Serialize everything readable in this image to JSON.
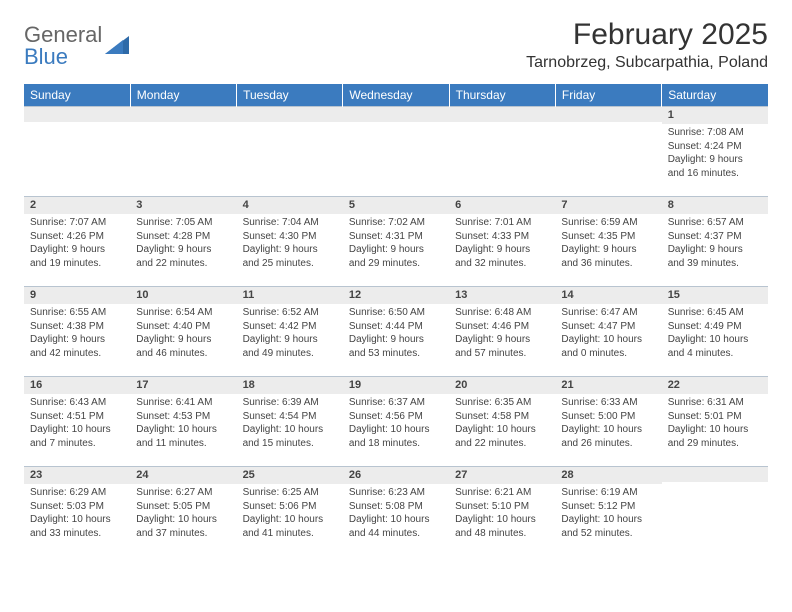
{
  "meta": {
    "background_color": "#ffffff",
    "header_row_color": "#3b7bbf",
    "header_text_color": "#ffffff",
    "daynum_bg_color": "#ececec",
    "border_color": "#b8c4d0",
    "body_text_color": "#444444",
    "logo_gray": "#666666",
    "logo_blue": "#3b7bbf",
    "font_family": "Arial",
    "title_fontsize_pt": 22,
    "location_fontsize_pt": 12,
    "dayheader_fontsize_pt": 9,
    "daynum_fontsize_pt": 8,
    "content_fontsize_pt": 7.5,
    "columns": 7,
    "rows": 5
  },
  "header": {
    "logo_text_top": "General",
    "logo_text_bottom": "Blue",
    "month_title": "February 2025",
    "location": "Tarnobrzeg, Subcarpathia, Poland"
  },
  "day_names": [
    "Sunday",
    "Monday",
    "Tuesday",
    "Wednesday",
    "Thursday",
    "Friday",
    "Saturday"
  ],
  "weeks": [
    [
      {
        "num": "",
        "sunrise": "",
        "sunset": "",
        "daylight": ""
      },
      {
        "num": "",
        "sunrise": "",
        "sunset": "",
        "daylight": ""
      },
      {
        "num": "",
        "sunrise": "",
        "sunset": "",
        "daylight": ""
      },
      {
        "num": "",
        "sunrise": "",
        "sunset": "",
        "daylight": ""
      },
      {
        "num": "",
        "sunrise": "",
        "sunset": "",
        "daylight": ""
      },
      {
        "num": "",
        "sunrise": "",
        "sunset": "",
        "daylight": ""
      },
      {
        "num": "1",
        "sunrise": "Sunrise: 7:08 AM",
        "sunset": "Sunset: 4:24 PM",
        "daylight": "Daylight: 9 hours and 16 minutes."
      }
    ],
    [
      {
        "num": "2",
        "sunrise": "Sunrise: 7:07 AM",
        "sunset": "Sunset: 4:26 PM",
        "daylight": "Daylight: 9 hours and 19 minutes."
      },
      {
        "num": "3",
        "sunrise": "Sunrise: 7:05 AM",
        "sunset": "Sunset: 4:28 PM",
        "daylight": "Daylight: 9 hours and 22 minutes."
      },
      {
        "num": "4",
        "sunrise": "Sunrise: 7:04 AM",
        "sunset": "Sunset: 4:30 PM",
        "daylight": "Daylight: 9 hours and 25 minutes."
      },
      {
        "num": "5",
        "sunrise": "Sunrise: 7:02 AM",
        "sunset": "Sunset: 4:31 PM",
        "daylight": "Daylight: 9 hours and 29 minutes."
      },
      {
        "num": "6",
        "sunrise": "Sunrise: 7:01 AM",
        "sunset": "Sunset: 4:33 PM",
        "daylight": "Daylight: 9 hours and 32 minutes."
      },
      {
        "num": "7",
        "sunrise": "Sunrise: 6:59 AM",
        "sunset": "Sunset: 4:35 PM",
        "daylight": "Daylight: 9 hours and 36 minutes."
      },
      {
        "num": "8",
        "sunrise": "Sunrise: 6:57 AM",
        "sunset": "Sunset: 4:37 PM",
        "daylight": "Daylight: 9 hours and 39 minutes."
      }
    ],
    [
      {
        "num": "9",
        "sunrise": "Sunrise: 6:55 AM",
        "sunset": "Sunset: 4:38 PM",
        "daylight": "Daylight: 9 hours and 42 minutes."
      },
      {
        "num": "10",
        "sunrise": "Sunrise: 6:54 AM",
        "sunset": "Sunset: 4:40 PM",
        "daylight": "Daylight: 9 hours and 46 minutes."
      },
      {
        "num": "11",
        "sunrise": "Sunrise: 6:52 AM",
        "sunset": "Sunset: 4:42 PM",
        "daylight": "Daylight: 9 hours and 49 minutes."
      },
      {
        "num": "12",
        "sunrise": "Sunrise: 6:50 AM",
        "sunset": "Sunset: 4:44 PM",
        "daylight": "Daylight: 9 hours and 53 minutes."
      },
      {
        "num": "13",
        "sunrise": "Sunrise: 6:48 AM",
        "sunset": "Sunset: 4:46 PM",
        "daylight": "Daylight: 9 hours and 57 minutes."
      },
      {
        "num": "14",
        "sunrise": "Sunrise: 6:47 AM",
        "sunset": "Sunset: 4:47 PM",
        "daylight": "Daylight: 10 hours and 0 minutes."
      },
      {
        "num": "15",
        "sunrise": "Sunrise: 6:45 AM",
        "sunset": "Sunset: 4:49 PM",
        "daylight": "Daylight: 10 hours and 4 minutes."
      }
    ],
    [
      {
        "num": "16",
        "sunrise": "Sunrise: 6:43 AM",
        "sunset": "Sunset: 4:51 PM",
        "daylight": "Daylight: 10 hours and 7 minutes."
      },
      {
        "num": "17",
        "sunrise": "Sunrise: 6:41 AM",
        "sunset": "Sunset: 4:53 PM",
        "daylight": "Daylight: 10 hours and 11 minutes."
      },
      {
        "num": "18",
        "sunrise": "Sunrise: 6:39 AM",
        "sunset": "Sunset: 4:54 PM",
        "daylight": "Daylight: 10 hours and 15 minutes."
      },
      {
        "num": "19",
        "sunrise": "Sunrise: 6:37 AM",
        "sunset": "Sunset: 4:56 PM",
        "daylight": "Daylight: 10 hours and 18 minutes."
      },
      {
        "num": "20",
        "sunrise": "Sunrise: 6:35 AM",
        "sunset": "Sunset: 4:58 PM",
        "daylight": "Daylight: 10 hours and 22 minutes."
      },
      {
        "num": "21",
        "sunrise": "Sunrise: 6:33 AM",
        "sunset": "Sunset: 5:00 PM",
        "daylight": "Daylight: 10 hours and 26 minutes."
      },
      {
        "num": "22",
        "sunrise": "Sunrise: 6:31 AM",
        "sunset": "Sunset: 5:01 PM",
        "daylight": "Daylight: 10 hours and 29 minutes."
      }
    ],
    [
      {
        "num": "23",
        "sunrise": "Sunrise: 6:29 AM",
        "sunset": "Sunset: 5:03 PM",
        "daylight": "Daylight: 10 hours and 33 minutes."
      },
      {
        "num": "24",
        "sunrise": "Sunrise: 6:27 AM",
        "sunset": "Sunset: 5:05 PM",
        "daylight": "Daylight: 10 hours and 37 minutes."
      },
      {
        "num": "25",
        "sunrise": "Sunrise: 6:25 AM",
        "sunset": "Sunset: 5:06 PM",
        "daylight": "Daylight: 10 hours and 41 minutes."
      },
      {
        "num": "26",
        "sunrise": "Sunrise: 6:23 AM",
        "sunset": "Sunset: 5:08 PM",
        "daylight": "Daylight: 10 hours and 44 minutes."
      },
      {
        "num": "27",
        "sunrise": "Sunrise: 6:21 AM",
        "sunset": "Sunset: 5:10 PM",
        "daylight": "Daylight: 10 hours and 48 minutes."
      },
      {
        "num": "28",
        "sunrise": "Sunrise: 6:19 AM",
        "sunset": "Sunset: 5:12 PM",
        "daylight": "Daylight: 10 hours and 52 minutes."
      },
      {
        "num": "",
        "sunrise": "",
        "sunset": "",
        "daylight": ""
      }
    ]
  ]
}
